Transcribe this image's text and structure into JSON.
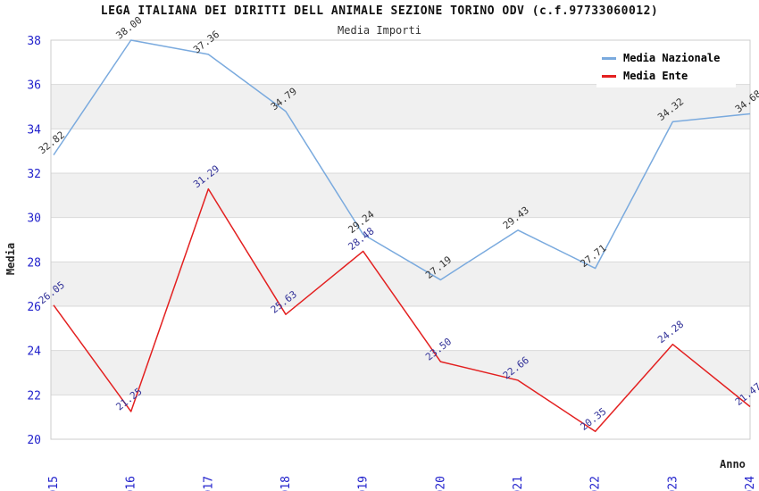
{
  "header": {
    "title": "LEGA ITALIANA DEI DIRITTI DELL ANIMALE SEZIONE TORINO ODV (c.f.97733060012)",
    "subtitle": "Media Importi"
  },
  "chart_data": {
    "type": "line",
    "title": "LEGA ITALIANA DEI DIRITTI DELL ANIMALE SEZIONE TORINO ODV (c.f.97733060012)",
    "subtitle": "Media Importi",
    "xlabel": "Anno",
    "ylabel": "Media",
    "categories": [
      "2015",
      "2016",
      "2017",
      "2018",
      "2019",
      "2020",
      "2021",
      "2022",
      "2023",
      "2024"
    ],
    "series": [
      {
        "name": "Media Nazionale",
        "color": "#7aaade",
        "label_color": "#333333",
        "values": [
          32.82,
          38.0,
          37.36,
          34.79,
          29.24,
          27.19,
          29.43,
          27.71,
          34.32,
          34.68
        ]
      },
      {
        "name": "Media Ente",
        "color": "#e32020",
        "label_color": "#333399",
        "values": [
          26.05,
          21.25,
          31.29,
          25.63,
          28.48,
          23.5,
          22.66,
          20.35,
          24.28,
          21.47
        ]
      }
    ],
    "ylim": [
      20,
      38
    ],
    "yticks": [
      20,
      22,
      24,
      26,
      28,
      30,
      32,
      34,
      36,
      38
    ],
    "grid": true,
    "legend_position": "top-right",
    "band_color": "#f0f0f0",
    "grid_color": "#d9d9d9",
    "border_color": "#cccccc",
    "tick_label_color": "#2222cc"
  }
}
